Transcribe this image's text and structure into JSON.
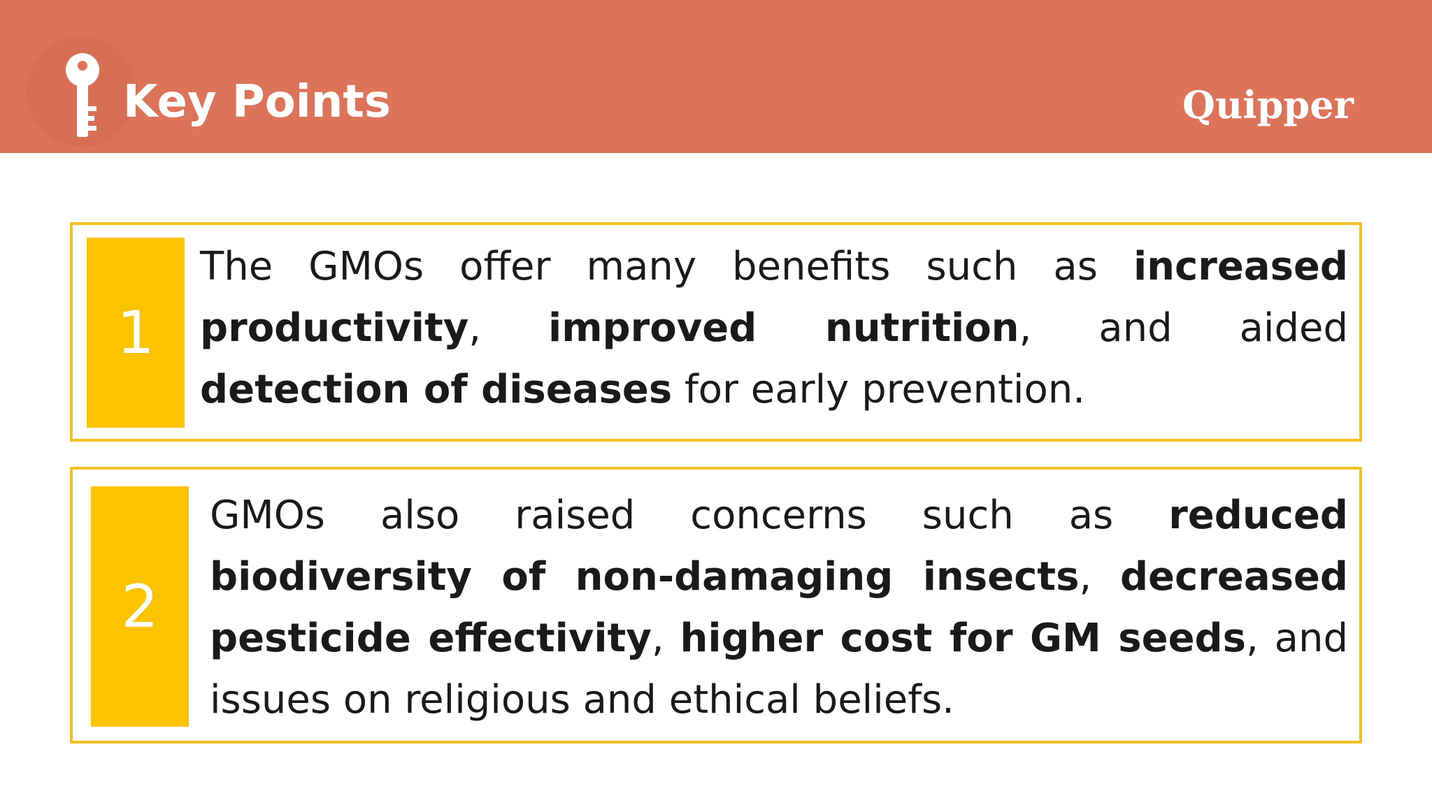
{
  "header": {
    "title": "Key Points",
    "brand": "Quipper",
    "icon": "key-icon",
    "background_color": "#DD7459"
  },
  "key_points": [
    {
      "number": "1",
      "segments": [
        {
          "text": "The GMOs offer many benefits such as ",
          "bold": false
        },
        {
          "text": "increased productivity",
          "bold": true
        },
        {
          "text": ", ",
          "bold": false
        },
        {
          "text": "improved nutrition",
          "bold": true
        },
        {
          "text": ", and aided ",
          "bold": false
        },
        {
          "text": "detection of diseases",
          "bold": true
        },
        {
          "text": " for early prevention.",
          "bold": false
        }
      ]
    },
    {
      "number": "2",
      "segments": [
        {
          "text": "GMOs also raised concerns such as ",
          "bold": false
        },
        {
          "text": "reduced biodiversity of non-damaging insects",
          "bold": true
        },
        {
          "text": ", ",
          "bold": false
        },
        {
          "text": "decreased pesticide effectivity",
          "bold": true
        },
        {
          "text": ", ",
          "bold": false
        },
        {
          "text": "higher cost for GM seeds",
          "bold": true
        },
        {
          "text": ", and issues on religious and ethical beliefs.",
          "bold": false
        }
      ]
    }
  ],
  "colors": {
    "accent_yellow": "#FCC300",
    "border_yellow": "#F4C026",
    "text": "#1a1a1a"
  }
}
